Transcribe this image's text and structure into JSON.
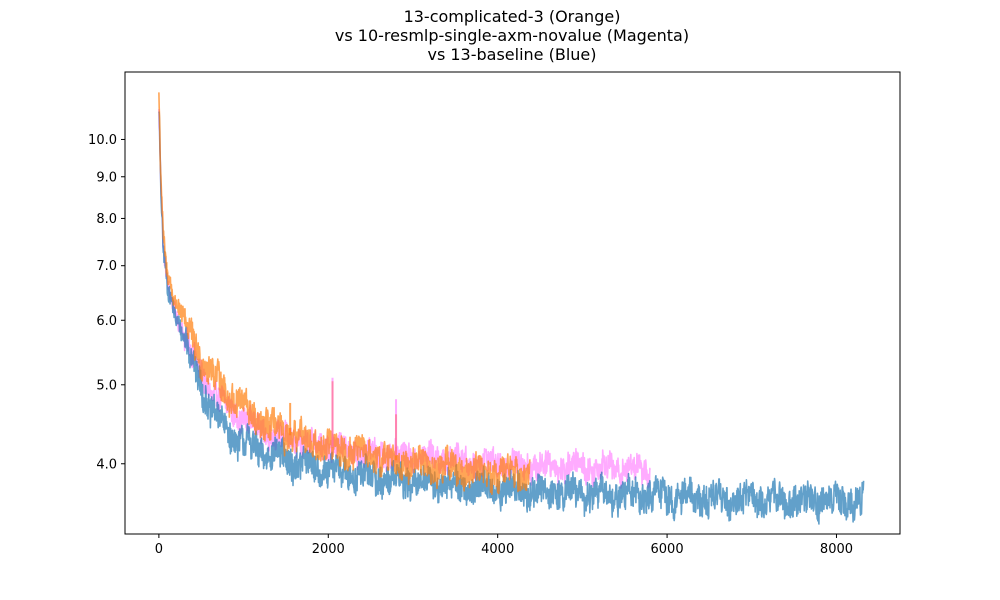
{
  "chart_data": {
    "type": "line",
    "title_lines": [
      "13-complicated-3 (Orange)",
      "vs 10-resmlp-single-axm-novalue (Magenta)",
      "vs 13-baseline (Blue)"
    ],
    "xlabel": "",
    "ylabel": "",
    "xlim": [
      -400,
      8750
    ],
    "ylim": [
      3.28,
      12.1
    ],
    "yscale": "log",
    "grid": false,
    "x_ticks": [
      0,
      2000,
      4000,
      6000,
      8000
    ],
    "x_tick_labels": [
      "0",
      "2000",
      "4000",
      "6000",
      "8000"
    ],
    "y_ticks": [
      4.0,
      5.0,
      6.0,
      7.0,
      8.0,
      9.0,
      10.0
    ],
    "y_tick_labels": [
      "4.0",
      "5.0",
      "6.0",
      "7.0",
      "8.0",
      "9.0",
      "10.0"
    ],
    "series": [
      {
        "color": "#ff66ff",
        "opacity": 0.55,
        "x_end": 5800,
        "noise": 0.1,
        "x": [
          0,
          20,
          50,
          100,
          200,
          300,
          400,
          500,
          600,
          800,
          1000,
          1200,
          1500,
          2000,
          2500,
          3000,
          3500,
          4000,
          4500,
          5000,
          5500,
          5800
        ],
        "values": [
          10.8,
          9.0,
          7.4,
          6.6,
          6.1,
          5.8,
          5.4,
          5.15,
          4.95,
          4.7,
          4.55,
          4.4,
          4.3,
          4.2,
          4.12,
          4.08,
          4.05,
          4.0,
          3.98,
          3.97,
          3.95,
          3.93
        ]
      },
      {
        "color": "#1f77b4",
        "opacity": 0.7,
        "x_end": 8320,
        "noise": 0.12,
        "x": [
          0,
          20,
          50,
          100,
          200,
          300,
          400,
          500,
          600,
          800,
          1000,
          1200,
          1500,
          2000,
          2500,
          3000,
          3500,
          4000,
          4500,
          5000,
          5500,
          6000,
          7000,
          8000,
          8320
        ],
        "values": [
          10.9,
          8.8,
          7.3,
          6.6,
          6.1,
          5.7,
          5.3,
          5.0,
          4.7,
          4.4,
          4.25,
          4.15,
          4.05,
          3.93,
          3.86,
          3.8,
          3.76,
          3.72,
          3.7,
          3.68,
          3.66,
          3.65,
          3.62,
          3.6,
          3.6
        ]
      },
      {
        "color": "#ff7f0e",
        "opacity": 0.7,
        "x_end": 4380,
        "noise": 0.12,
        "x": [
          0,
          20,
          50,
          100,
          200,
          300,
          400,
          500,
          600,
          800,
          1000,
          1200,
          1500,
          2000,
          2500,
          3000,
          3500,
          4000,
          4380
        ],
        "values": [
          11.4,
          9.2,
          7.6,
          6.9,
          6.3,
          6.0,
          5.7,
          5.4,
          5.2,
          4.9,
          4.7,
          4.5,
          4.35,
          4.2,
          4.1,
          4.0,
          3.95,
          3.9,
          3.88
        ]
      }
    ],
    "spikes": [
      {
        "series": 2,
        "x": 1550,
        "y": 4.75
      },
      {
        "series": 2,
        "x": 2050,
        "y": 5.05
      },
      {
        "series": 2,
        "x": 2800,
        "y": 4.6
      },
      {
        "series": 0,
        "x": 2050,
        "y": 5.1
      },
      {
        "series": 0,
        "x": 2800,
        "y": 4.8
      }
    ]
  }
}
